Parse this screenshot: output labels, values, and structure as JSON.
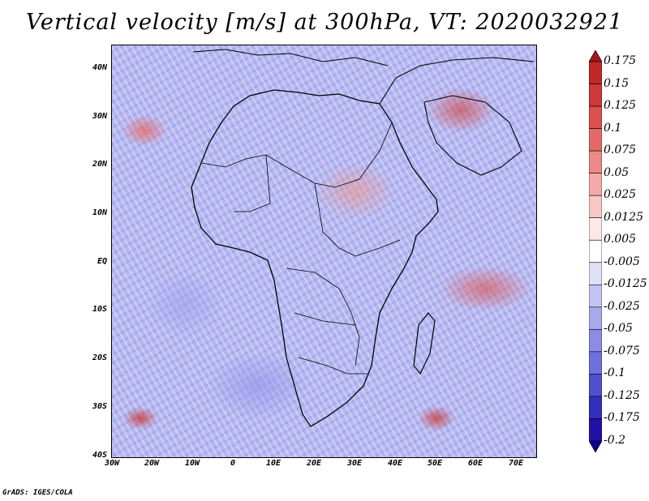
{
  "title": "Vertical velocity [m/s] at 300hPa, VT: 2020032921",
  "map": {
    "region": "Africa",
    "lat_labels": [
      "40N",
      "30N",
      "20N",
      "10N",
      "EQ",
      "10S",
      "20S",
      "30S",
      "40S"
    ],
    "lon_labels": [
      "30W",
      "20W",
      "10W",
      "0",
      "10E",
      "20E",
      "30E",
      "40E",
      "50E",
      "60E",
      "70E"
    ]
  },
  "colorbar": {
    "levels": [
      "0.175",
      "0.15",
      "0.125",
      "0.1",
      "0.075",
      "0.05",
      "0.025",
      "0.0125",
      "0.005",
      "-0.005",
      "-0.0125",
      "-0.025",
      "-0.05",
      "-0.075",
      "-0.1",
      "-0.125",
      "-0.175",
      "-0.2"
    ],
    "colors": [
      "#a01818",
      "#c02828",
      "#d03838",
      "#dc5050",
      "#e46a68",
      "#ec8a88",
      "#f4aaa8",
      "#f8c8c8",
      "#fce8e8",
      "#ffffff",
      "#e0e0f8",
      "#c4c4f2",
      "#a8a8ec",
      "#8c8ce4",
      "#7070dc",
      "#5050d0",
      "#3030bc",
      "#2010a8",
      "#100090"
    ]
  },
  "credit": "GrADS: IGES/COLA"
}
